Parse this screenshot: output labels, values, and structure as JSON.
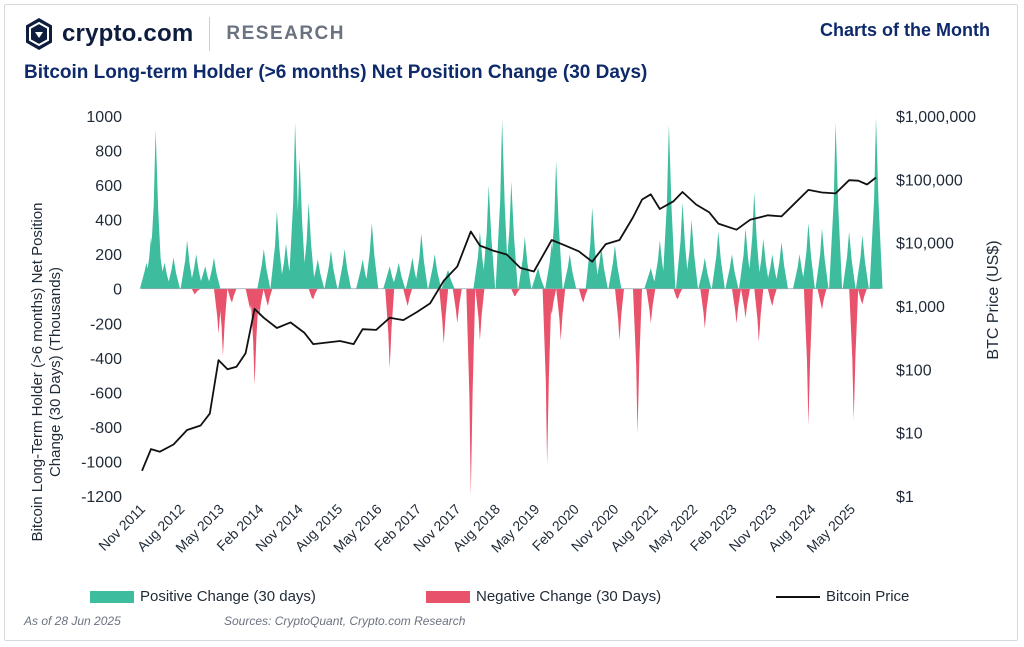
{
  "header": {
    "brand": "crypto.com",
    "research": "RESEARCH",
    "series_label": "Charts of the Month",
    "chart_title": "Bitcoin Long-term Holder (>6 months) Net Position Change (30 Days)"
  },
  "footer": {
    "as_of": "As of 28 Jun 2025",
    "sources": "Sources: CryptoQuant, Crypto.com Research"
  },
  "colors": {
    "positive": "#3dbd9e",
    "negative": "#e8526b",
    "price_line": "#111111",
    "title": "#0e2a6b"
  },
  "chart_data": {
    "type": "area",
    "title": "Bitcoin Long-term Holder (>6 months) Net Position Change (30 Days)",
    "ylabel_left": "Bitcoin Long-Term Holder (>6 months) Net Position Change (30 Days) (Thousands)",
    "ylabel_left_lines": [
      "Bitcoin Long-Term Holder (>6 months) Net Position",
      "Change (30 Days) (Thousands)"
    ],
    "ylabel_right": "BTC Price (US$)",
    "xlim": [
      "2011-11-01",
      "2025-06-28"
    ],
    "ylim_left": [
      -1200,
      1000
    ],
    "yticks_left": [
      "1000",
      "800",
      "600",
      "400",
      "200",
      "0",
      "-200",
      "-400",
      "-600",
      "-800",
      "-1000",
      "-1200"
    ],
    "ylim_right_log": [
      1,
      1000000
    ],
    "yticks_right": [
      "$1,000,000",
      "$100,000",
      "$10,000",
      "$1,000",
      "$100",
      "$10",
      "$1"
    ],
    "xticks": [
      "Nov 2011",
      "Aug 2012",
      "May 2013",
      "Feb 2014",
      "Nov 2014",
      "Aug 2015",
      "May 2016",
      "Feb 2017",
      "Nov 2017",
      "Aug 2018",
      "May 2019",
      "Feb 2020",
      "Nov 2020",
      "Aug 2021",
      "May 2022",
      "Feb 2023",
      "Nov 2023",
      "Aug 2024",
      "May 2025"
    ],
    "legend": {
      "placement": "bottom",
      "positive": "Positive Change (30 days)",
      "negative": "Negative Change (30 Days)",
      "price": "Bitcoin Price"
    },
    "grid": false,
    "series": [
      {
        "name": "Positive Change (30 days)",
        "kind": "area-positive",
        "points": [
          [
            "2011-12-01",
            150
          ],
          [
            "2012-01-01",
            300
          ],
          [
            "2012-02-01",
            920
          ],
          [
            "2012-03-01",
            200
          ],
          [
            "2012-04-01",
            150
          ],
          [
            "2012-06-01",
            180
          ],
          [
            "2012-09-01",
            280
          ],
          [
            "2012-11-01",
            200
          ],
          [
            "2013-01-01",
            130
          ],
          [
            "2013-03-01",
            180
          ],
          [
            "2014-02-01",
            230
          ],
          [
            "2014-05-01",
            450
          ],
          [
            "2014-07-01",
            260
          ],
          [
            "2014-09-01",
            960
          ],
          [
            "2014-10-01",
            760
          ],
          [
            "2014-12-01",
            500
          ],
          [
            "2015-02-01",
            170
          ],
          [
            "2015-05-01",
            220
          ],
          [
            "2015-08-01",
            230
          ],
          [
            "2015-12-01",
            170
          ],
          [
            "2016-02-01",
            380
          ],
          [
            "2016-06-01",
            130
          ],
          [
            "2016-08-01",
            150
          ],
          [
            "2016-11-01",
            180
          ],
          [
            "2017-01-01",
            320
          ],
          [
            "2017-04-01",
            200
          ],
          [
            "2017-07-01",
            110
          ],
          [
            "2018-02-01",
            330
          ],
          [
            "2018-04-01",
            600
          ],
          [
            "2018-07-01",
            980
          ],
          [
            "2018-09-01",
            620
          ],
          [
            "2018-12-01",
            300
          ],
          [
            "2019-03-01",
            120
          ],
          [
            "2019-06-01",
            260
          ],
          [
            "2019-07-01",
            740
          ],
          [
            "2019-10-01",
            200
          ],
          [
            "2020-03-01",
            470
          ],
          [
            "2020-05-01",
            240
          ],
          [
            "2020-08-01",
            250
          ],
          [
            "2021-04-01",
            120
          ],
          [
            "2021-06-01",
            280
          ],
          [
            "2021-08-01",
            950
          ],
          [
            "2021-11-01",
            500
          ],
          [
            "2022-01-01",
            400
          ],
          [
            "2022-04-01",
            180
          ],
          [
            "2022-07-01",
            330
          ],
          [
            "2022-10-01",
            200
          ],
          [
            "2023-01-01",
            350
          ],
          [
            "2023-03-01",
            560
          ],
          [
            "2023-05-01",
            290
          ],
          [
            "2023-07-01",
            200
          ],
          [
            "2023-09-01",
            270
          ],
          [
            "2024-01-01",
            200
          ],
          [
            "2024-03-01",
            380
          ],
          [
            "2024-06-01",
            350
          ],
          [
            "2024-09-01",
            960
          ],
          [
            "2024-12-01",
            330
          ],
          [
            "2025-03-01",
            310
          ],
          [
            "2025-06-01",
            990
          ]
        ]
      },
      {
        "name": "Negative Change (30 Days)",
        "kind": "area-negative",
        "points": [
          [
            "2012-11-01",
            -20
          ],
          [
            "2013-04-01",
            -260
          ],
          [
            "2013-05-01",
            -390
          ],
          [
            "2013-07-01",
            -80
          ],
          [
            "2013-11-01",
            -120
          ],
          [
            "2013-12-01",
            -560
          ],
          [
            "2014-01-01",
            -160
          ],
          [
            "2014-03-01",
            -100
          ],
          [
            "2015-01-01",
            -60
          ],
          [
            "2016-06-01",
            -460
          ],
          [
            "2016-10-01",
            -100
          ],
          [
            "2017-06-01",
            -320
          ],
          [
            "2017-09-01",
            -200
          ],
          [
            "2017-12-01",
            -1200
          ],
          [
            "2018-02-01",
            -300
          ],
          [
            "2018-10-01",
            -40
          ],
          [
            "2019-05-01",
            -1020
          ],
          [
            "2019-06-01",
            -150
          ],
          [
            "2019-08-01",
            -300
          ],
          [
            "2020-01-01",
            -80
          ],
          [
            "2020-09-01",
            -300
          ],
          [
            "2021-01-01",
            -840
          ],
          [
            "2021-04-01",
            -200
          ],
          [
            "2021-10-01",
            -60
          ],
          [
            "2022-04-01",
            -230
          ],
          [
            "2022-11-01",
            -200
          ],
          [
            "2023-01-01",
            -170
          ],
          [
            "2023-04-01",
            -310
          ],
          [
            "2023-07-01",
            -100
          ],
          [
            "2024-03-01",
            -790
          ],
          [
            "2024-06-01",
            -120
          ],
          [
            "2025-01-01",
            -760
          ],
          [
            "2025-03-01",
            -90
          ]
        ]
      },
      {
        "name": "Bitcoin Price",
        "kind": "line",
        "points": [
          [
            "2011-11-01",
            2.5
          ],
          [
            "2012-01-01",
            5.5
          ],
          [
            "2012-03-01",
            5
          ],
          [
            "2012-06-01",
            6.5
          ],
          [
            "2012-09-01",
            11
          ],
          [
            "2012-12-01",
            13
          ],
          [
            "2013-02-01",
            20
          ],
          [
            "2013-04-01",
            140
          ],
          [
            "2013-06-01",
            100
          ],
          [
            "2013-08-01",
            110
          ],
          [
            "2013-10-01",
            180
          ],
          [
            "2013-12-01",
            900
          ],
          [
            "2014-02-01",
            650
          ],
          [
            "2014-05-01",
            450
          ],
          [
            "2014-08-01",
            550
          ],
          [
            "2014-11-01",
            380
          ],
          [
            "2015-01-01",
            250
          ],
          [
            "2015-03-01",
            260
          ],
          [
            "2015-07-01",
            280
          ],
          [
            "2015-10-01",
            250
          ],
          [
            "2015-12-01",
            430
          ],
          [
            "2016-03-01",
            420
          ],
          [
            "2016-06-01",
            650
          ],
          [
            "2016-09-01",
            600
          ],
          [
            "2016-12-01",
            800
          ],
          [
            "2017-03-01",
            1100
          ],
          [
            "2017-06-01",
            2500
          ],
          [
            "2017-09-01",
            4200
          ],
          [
            "2017-12-01",
            15000
          ],
          [
            "2018-02-01",
            9000
          ],
          [
            "2018-05-01",
            7500
          ],
          [
            "2018-08-01",
            6500
          ],
          [
            "2018-11-01",
            4000
          ],
          [
            "2019-02-01",
            3500
          ],
          [
            "2019-06-01",
            11000
          ],
          [
            "2019-09-01",
            9000
          ],
          [
            "2019-12-01",
            7300
          ],
          [
            "2020-03-01",
            5000
          ],
          [
            "2020-06-01",
            9500
          ],
          [
            "2020-09-01",
            11000
          ],
          [
            "2020-12-01",
            25000
          ],
          [
            "2021-02-01",
            48000
          ],
          [
            "2021-04-01",
            58000
          ],
          [
            "2021-06-01",
            34000
          ],
          [
            "2021-09-01",
            45000
          ],
          [
            "2021-11-01",
            63000
          ],
          [
            "2022-02-01",
            40000
          ],
          [
            "2022-05-01",
            30000
          ],
          [
            "2022-07-01",
            20000
          ],
          [
            "2022-11-01",
            16000
          ],
          [
            "2023-02-01",
            23000
          ],
          [
            "2023-06-01",
            27000
          ],
          [
            "2023-09-01",
            26000
          ],
          [
            "2023-12-01",
            42000
          ],
          [
            "2024-03-01",
            68000
          ],
          [
            "2024-06-01",
            62000
          ],
          [
            "2024-09-01",
            60000
          ],
          [
            "2024-12-01",
            97000
          ],
          [
            "2025-02-01",
            95000
          ],
          [
            "2025-04-01",
            83000
          ],
          [
            "2025-06-01",
            107000
          ]
        ]
      }
    ]
  }
}
